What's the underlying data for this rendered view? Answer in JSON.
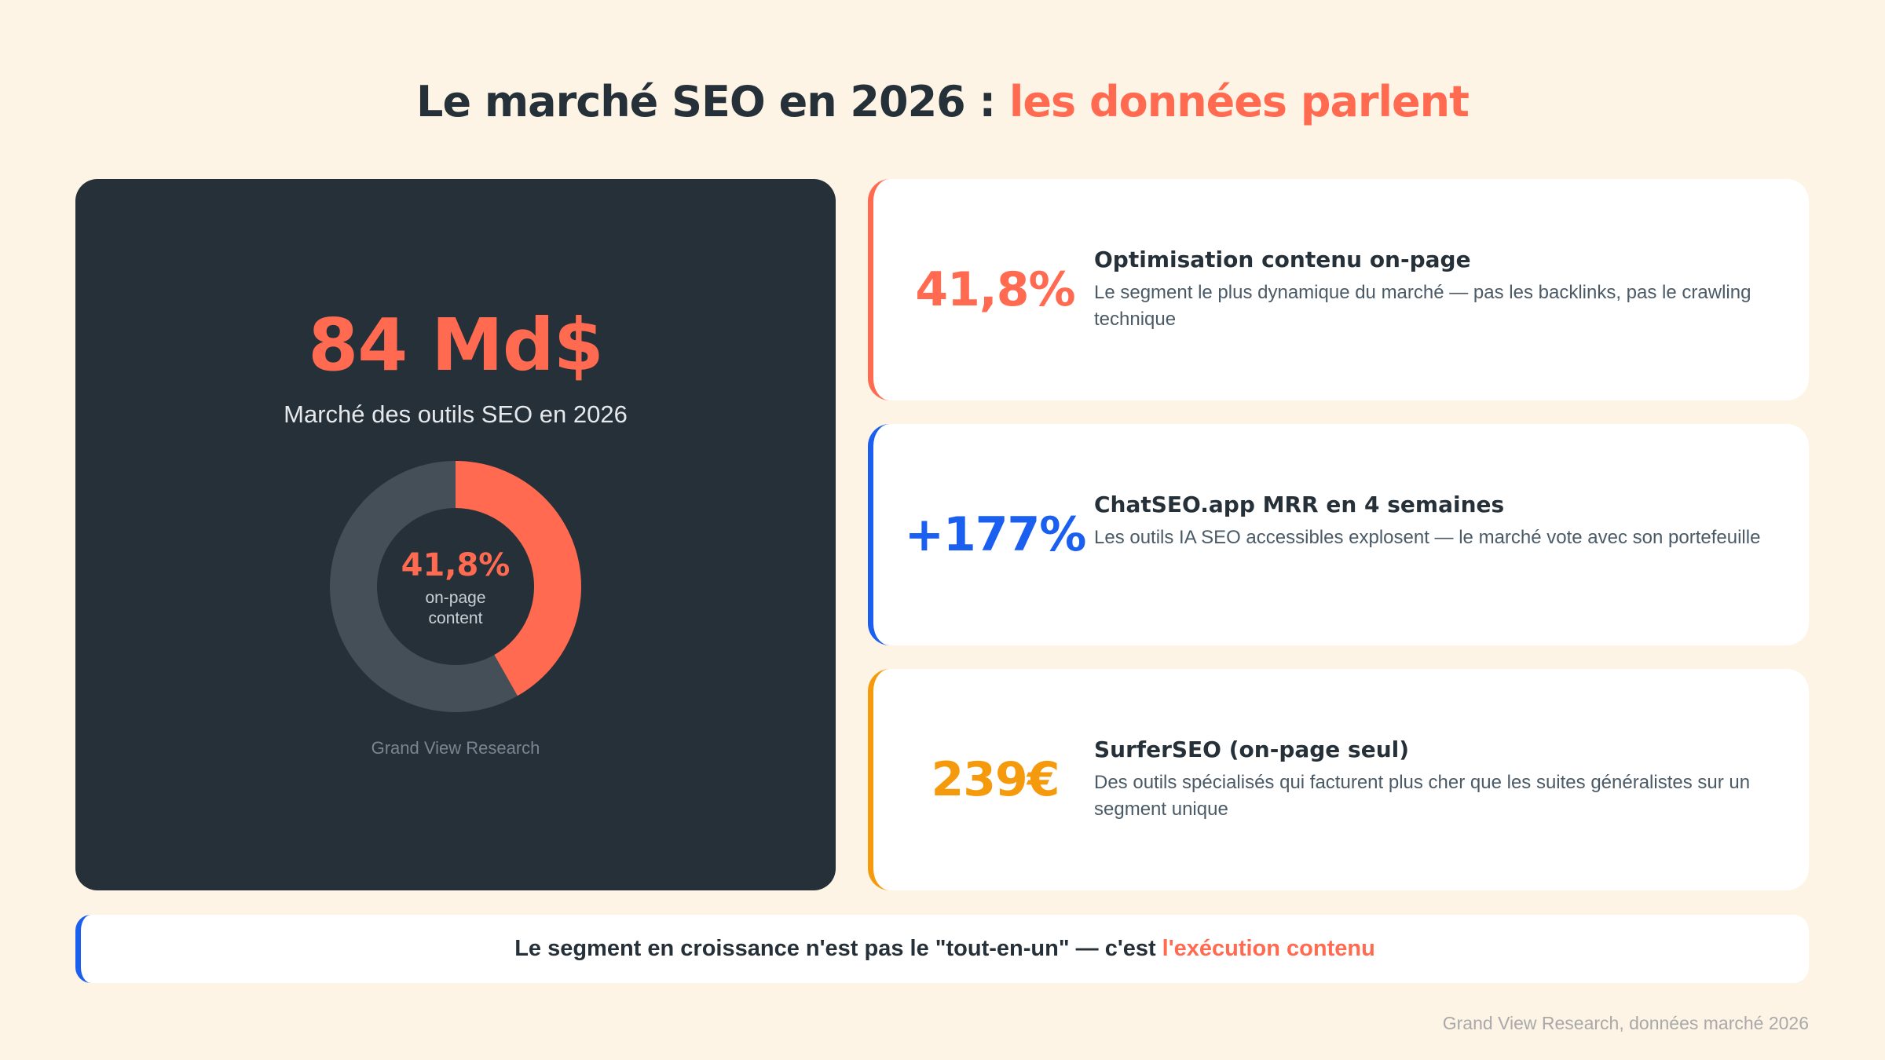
{
  "colors": {
    "background": "#fdf4e6",
    "dark": "#263038",
    "coral": "#ff6a50",
    "blue": "#1a5ff0",
    "orange": "#f59a0c",
    "ring": "#454f57"
  },
  "title": {
    "main": "Le marché SEO en 2026 : ",
    "accent": "les données parlent"
  },
  "hero": {
    "value": "84 Md$",
    "subtitle": "Marché des outils SEO en 2026",
    "source": "Grand View Research"
  },
  "chart_data": {
    "type": "pie",
    "donut": true,
    "slices": [
      {
        "name": "on-page content",
        "value": 41.8,
        "color": "#ff6a50"
      },
      {
        "value": 58.2,
        "color": "#454f57"
      }
    ],
    "center_value": "41,8%",
    "center_label_1": "on-page",
    "center_label_2": "content"
  },
  "cards": [
    {
      "value": "41,8%",
      "title": "Optimisation contenu on-page",
      "desc": "Le segment le plus dynamique du marché — pas les backlinks, pas le crawling technique",
      "color": "#ff6a50"
    },
    {
      "value": "+177%",
      "title": "ChatSEO.app MRR en 4 semaines",
      "desc": "Les outils IA SEO accessibles explosent — le marché vote avec son portefeuille",
      "color": "#1a5ff0"
    },
    {
      "value": "239€",
      "title": "SurferSEO (on-page seul)",
      "desc": "Des outils spécialisés qui facturent plus cher que les suites généralistes sur un segment unique",
      "color": "#f59a0c"
    }
  ],
  "banner": {
    "text": "Le segment en croissance n'est pas le \"tout-en-un\" — c'est",
    "highlight": "l'exécution contenu"
  },
  "footer": "Grand View Research, données marché 2026"
}
